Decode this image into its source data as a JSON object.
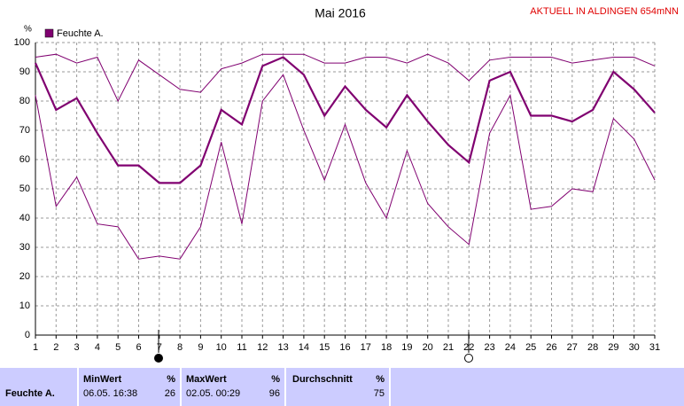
{
  "chart_data": {
    "type": "line",
    "title": "Mai 2016",
    "subtitle": "AKTUELL IN ALDINGEN 654mNN",
    "y_label": "%",
    "x": [
      1,
      2,
      3,
      4,
      5,
      6,
      7,
      8,
      9,
      10,
      11,
      12,
      13,
      14,
      15,
      16,
      17,
      18,
      19,
      20,
      21,
      22,
      23,
      24,
      25,
      26,
      27,
      28,
      29,
      30,
      31
    ],
    "xlim": [
      1,
      31
    ],
    "ylim": [
      0,
      100
    ],
    "yticks": [
      0,
      10,
      20,
      30,
      40,
      50,
      60,
      70,
      80,
      90,
      100
    ],
    "grid": true,
    "legend": "top-left",
    "series": [
      {
        "name": "Feuchte A.",
        "color": "#800070",
        "values": [
          93,
          77,
          81,
          69,
          58,
          58,
          52,
          52,
          58,
          77,
          72,
          92,
          95,
          89,
          75,
          85,
          77,
          71,
          82,
          73,
          65,
          59,
          87,
          90,
          75,
          75,
          73,
          77,
          90,
          84,
          76
        ]
      },
      {
        "color": "#800070",
        "values": [
          95,
          96,
          93,
          95,
          80,
          94,
          89,
          84,
          83,
          91,
          93,
          96,
          96,
          96,
          93,
          93,
          95,
          95,
          93,
          96,
          93,
          87,
          94,
          95,
          95,
          95,
          93,
          94,
          95,
          95,
          92
        ]
      },
      {
        "color": "#800070",
        "values": [
          82,
          44,
          54,
          38,
          37,
          26,
          27,
          26,
          37,
          66,
          38,
          80,
          89,
          70,
          53,
          72,
          52,
          40,
          63,
          45,
          37,
          31,
          69,
          82,
          43,
          44,
          50,
          49,
          74,
          67,
          53
        ]
      }
    ]
  },
  "table": {
    "row": "Feuchte A.",
    "columns": [
      {
        "label": "MinWert",
        "unit": "%",
        "time": "06.05. 16:38",
        "value": "26"
      },
      {
        "label": "MaxWert",
        "unit": "%",
        "time": "02.05. 00:29",
        "value": "96"
      },
      {
        "label": "Durchschnitt",
        "unit": "%",
        "value": "75"
      }
    ]
  }
}
